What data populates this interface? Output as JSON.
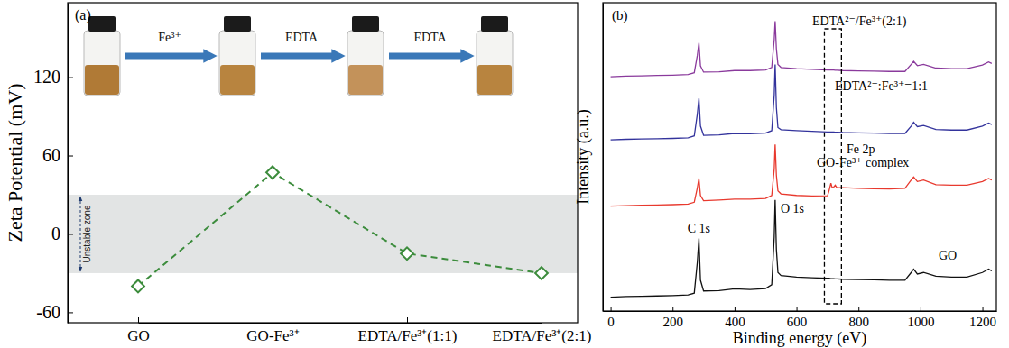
{
  "chart_data": [
    {
      "type": "line",
      "panel_label": "(a)",
      "y_label": "Zeta Potential (mV)",
      "categories": [
        "GO",
        "GO-Fe³⁺",
        "EDTA/Fe³⁺(1:1)",
        "EDTA/Fe³⁺(2:1)"
      ],
      "values": [
        -40,
        47,
        -15,
        -30
      ],
      "color": "#3c8c3c",
      "marker": "diamond",
      "line_style": "dashed",
      "ylim": [
        -68,
        177
      ],
      "yticks": [
        -60,
        0,
        60,
        120
      ],
      "unstable_zone": {
        "label": "Unstable zone",
        "range": [
          -30,
          30
        ]
      },
      "annotations": [
        "Fe³⁺",
        "EDTA",
        "EDTA"
      ]
    },
    {
      "type": "line",
      "panel_label": "(b)",
      "x_label": "Binding energy (eV)",
      "y_label": "Intensity (a.u.)",
      "tick_labels": "x",
      "x": [
        0,
        50,
        100,
        150,
        200,
        250,
        270,
        280,
        285,
        290,
        300,
        350,
        400,
        450,
        500,
        520,
        528,
        531,
        535,
        540,
        550,
        600,
        650,
        700,
        705,
        711,
        715,
        720,
        725,
        730,
        750,
        800,
        850,
        900,
        950,
        970,
        978,
        990,
        1010,
        1050,
        1100,
        1150,
        1200,
        1220,
        1230
      ],
      "xlim": [
        -25,
        1245
      ],
      "xticks": [
        0,
        200,
        400,
        600,
        800,
        1000,
        1200
      ],
      "ylim": [
        0,
        100
      ],
      "highlight": [
        690,
        745
      ],
      "annotations": [
        {
          "text": "C 1s",
          "x": 285
        },
        {
          "text": "O 1s",
          "x": 531
        },
        {
          "text": "Fe 2p",
          "x": 750
        }
      ],
      "series": [
        {
          "name": "GO",
          "color": "#111111",
          "values": [
            4.5,
            4.7,
            4.8,
            4.9,
            5.0,
            5.2,
            5.8,
            16,
            23.5,
            10,
            6.5,
            6.6,
            7.2,
            7.0,
            7.3,
            8.5,
            24,
            36,
            20,
            12.5,
            11.5,
            11,
            10.8,
            10.6,
            10.6,
            10.5,
            10.5,
            10.5,
            10.4,
            10.4,
            10.3,
            10.2,
            10.1,
            10.0,
            10.0,
            12.5,
            13.6,
            12,
            12.5,
            11.3,
            11,
            11,
            12.5,
            13.6,
            13
          ]
        },
        {
          "name": "GO-Fe³⁺ complex",
          "color": "#e8392e",
          "values": [
            34,
            34.2,
            34.3,
            34.4,
            34.5,
            34.7,
            35.3,
            40,
            43,
            37.5,
            35.8,
            36,
            36.3,
            36.3,
            36.5,
            37.5,
            46,
            54,
            44,
            39,
            38,
            37.5,
            37.3,
            37.4,
            39,
            41.5,
            40,
            40.2,
            40.8,
            40,
            40,
            39.8,
            39.7,
            39.6,
            39.8,
            42.5,
            43.5,
            42,
            42.5,
            41,
            40.8,
            40.8,
            42,
            43,
            42.5
          ]
        },
        {
          "name": "EDTA²⁻:Fe³⁺=1:1",
          "color": "#33339c",
          "values": [
            55.5,
            55.7,
            55.8,
            55.9,
            56.0,
            56.2,
            56.8,
            64,
            69,
            60,
            57,
            57.1,
            57.6,
            57.5,
            57.7,
            58.5,
            70,
            80,
            66,
            59.5,
            58.8,
            58.5,
            58.3,
            58.1,
            58.1,
            58.1,
            58.1,
            58.1,
            58.0,
            58.0,
            57.9,
            57.8,
            57.7,
            57.6,
            57.6,
            60,
            61.2,
            59.8,
            60.2,
            58.9,
            58.7,
            58.7,
            60,
            61,
            60.5
          ]
        },
        {
          "name": "EDTA²⁻/Fe³⁺(2:1)",
          "color": "#8a3a9c",
          "values": [
            76,
            76.2,
            76.3,
            76.4,
            76.5,
            76.7,
            77.3,
            83,
            87,
            79.5,
            77.5,
            77.6,
            78,
            78,
            78.2,
            79,
            88,
            94,
            85,
            80,
            79,
            78.6,
            78.4,
            78.2,
            78.2,
            78.2,
            78.2,
            78.2,
            78.1,
            78.1,
            78,
            77.9,
            77.8,
            77.7,
            77.7,
            80,
            81,
            79.6,
            80,
            78.8,
            78.6,
            78.6,
            79.8,
            80.8,
            80.3
          ]
        }
      ]
    }
  ]
}
